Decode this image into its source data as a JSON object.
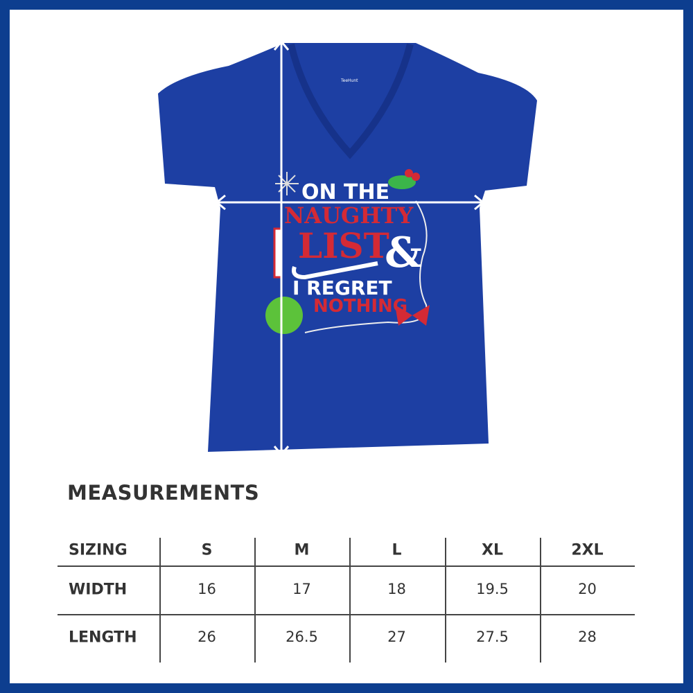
{
  "colors": {
    "frame": "#0d3e8f",
    "shirt": "#1d3fa3",
    "text": "#333333",
    "red": "#d42a35",
    "green": "#3bb54a"
  },
  "product": {
    "label_brand": "TeeHunt",
    "graphic_text": {
      "line1": "ON THE",
      "line2": "NAUGHTY",
      "line3": "LIST",
      "ampersand": "&",
      "line4": "I REGRET",
      "line5": "NOTHING"
    }
  },
  "measurements": {
    "title": "MEASUREMENTS",
    "header": {
      "label": "SIZING",
      "sizes": [
        "S",
        "M",
        "L",
        "XL",
        "2XL"
      ]
    },
    "rows": [
      {
        "label": "WIDTH",
        "values": [
          "16",
          "17",
          "18",
          "19.5",
          "20"
        ]
      },
      {
        "label": "LENGTH",
        "values": [
          "26",
          "26.5",
          "27",
          "27.5",
          "28"
        ]
      }
    ]
  }
}
